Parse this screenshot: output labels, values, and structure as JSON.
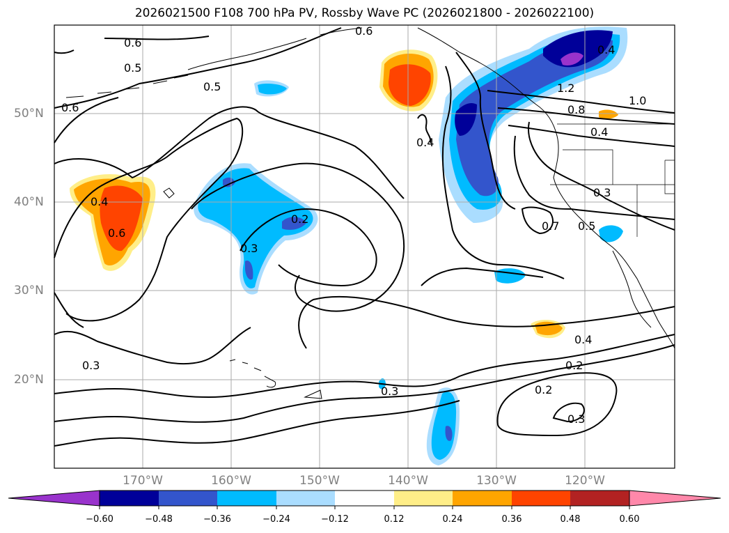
{
  "title": "2026021500 F108 700 hPa PV, Rossby Wave PC (2026021800 - 2026022100)",
  "map": {
    "lon_labels": [
      {
        "name": "lon-label-170w",
        "text": "170°W"
      },
      {
        "name": "lon-label-160w",
        "text": "160°W"
      },
      {
        "name": "lon-label-150w",
        "text": "150°W"
      },
      {
        "name": "lon-label-140w",
        "text": "140°W"
      },
      {
        "name": "lon-label-130w",
        "text": "130°W"
      },
      {
        "name": "lon-label-120w",
        "text": "120°W"
      }
    ],
    "lat_labels": [
      {
        "name": "lat-label-50n",
        "text": "50°N"
      },
      {
        "name": "lat-label-40n",
        "text": "40°N"
      },
      {
        "name": "lat-label-30n",
        "text": "30°N"
      },
      {
        "name": "lat-label-20n",
        "text": "20°N"
      }
    ],
    "contour_labels": [
      "0.6",
      "0.5",
      "0.5",
      "0.6",
      "0.6",
      "0.4",
      "0.6",
      "0.3",
      "0.2",
      "0.4",
      "1.2",
      "0.8",
      "1.0",
      "0.4",
      "0.3",
      "0.7",
      "0.5",
      "0.4",
      "0.2",
      "0.2",
      "0.3",
      "0.3",
      "0.3",
      "0.4"
    ]
  },
  "colorbar": {
    "ticks": [
      "−0.60",
      "−0.48",
      "−0.36",
      "−0.24",
      "−0.12",
      "0.12",
      "0.24",
      "0.36",
      "0.48",
      "0.60"
    ],
    "colors": {
      "under": "#9933cc",
      "b1": "#000099",
      "b2": "#3355cc",
      "b3": "#00bbff",
      "b4": "#aaddff",
      "b5": "#ffffff",
      "b6": "#ffee88",
      "b7": "#ffa500",
      "b8": "#ff4400",
      "b9": "#b22222",
      "over": "#ff88aa"
    }
  }
}
